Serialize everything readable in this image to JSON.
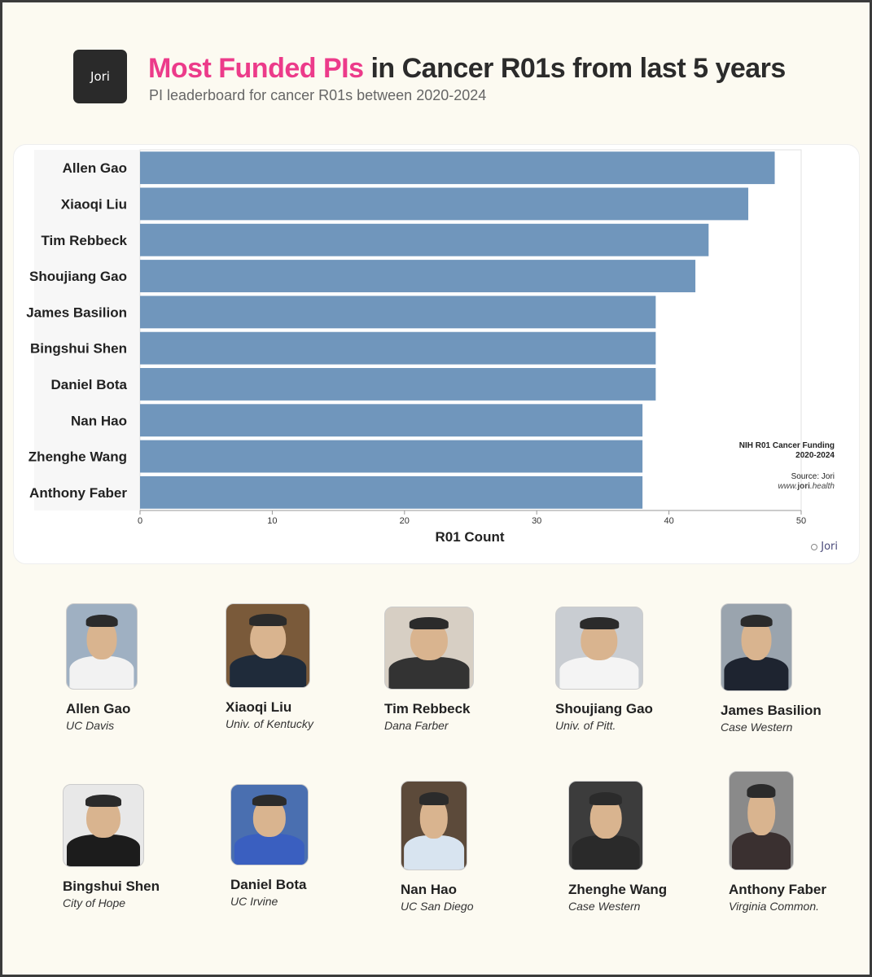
{
  "header": {
    "logo_text": "Jori",
    "title_highlight": "Most Funded PIs",
    "title_rest": " in Cancer R01s from last 5 years",
    "subtitle": "PI leaderboard for cancer R01s between 2020-2024"
  },
  "chart_data": {
    "type": "bar",
    "orientation": "horizontal",
    "categories": [
      "Allen Gao",
      "Xiaoqi Liu",
      "Tim Rebbeck",
      "Shoujiang Gao",
      "James Basilion",
      "Bingshui Shen",
      "Daniel Bota",
      "Nan Hao",
      "Zhenghe Wang",
      "Anthony Faber"
    ],
    "values": [
      48,
      46,
      43,
      42,
      39,
      39,
      39,
      38,
      38,
      38
    ],
    "xlabel": "R01 Count",
    "ylabel": "",
    "xlim": [
      0,
      50
    ],
    "xticks": [
      0,
      10,
      20,
      30,
      40,
      50
    ],
    "bar_color": "#7096bc",
    "legend_title_line1": "NIH R01 Cancer Funding",
    "legend_title_line2": "2020-2024",
    "source": "Source: Jori",
    "url_prefix": "www.",
    "url_bold": "jori",
    "url_suffix": ".health"
  },
  "watermark": "Jori",
  "pis": [
    {
      "name": "Allen Gao",
      "institution": "UC Davis"
    },
    {
      "name": "Xiaoqi Liu",
      "institution": "Univ. of Kentucky"
    },
    {
      "name": "Tim Rebbeck",
      "institution": "Dana Farber"
    },
    {
      "name": "Shoujiang Gao",
      "institution": "Univ. of Pitt."
    },
    {
      "name": "James Basilion",
      "institution": "Case Western"
    },
    {
      "name": "Bingshui Shen",
      "institution": "City of Hope"
    },
    {
      "name": "Daniel Bota",
      "institution": "UC Irvine"
    },
    {
      "name": "Nan Hao",
      "institution": "UC San Diego"
    },
    {
      "name": "Zhenghe Wang",
      "institution": "Case Western"
    },
    {
      "name": "Anthony Faber",
      "institution": "Virginia Common."
    }
  ],
  "colors": {
    "accent": "#ec3b8a",
    "title": "#2b2b2b",
    "bar": "#7096bc"
  }
}
